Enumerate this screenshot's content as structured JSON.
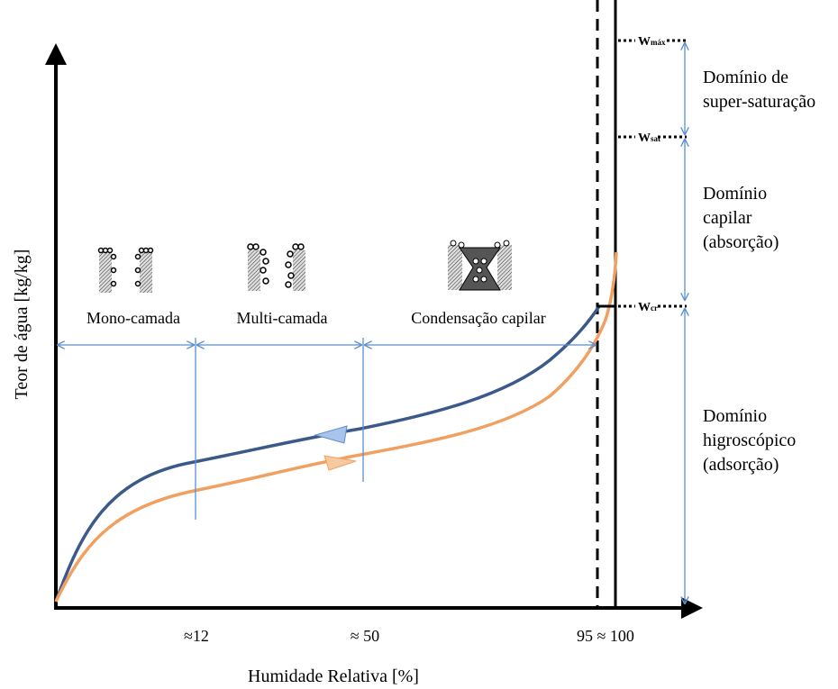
{
  "axes": {
    "y_label": "Teor de água [kg/kg]",
    "x_label": "Humidade Relativa [%]",
    "x_ticks": [
      "≈12",
      "≈ 50",
      "95 ≈ 100"
    ]
  },
  "regions": [
    "Mono-camada",
    "Multi-camada",
    "Condensação capilar"
  ],
  "levels": [
    {
      "symbol": "W",
      "subscript": "máx"
    },
    {
      "symbol": "W",
      "subscript": "sat"
    },
    {
      "symbol": "W",
      "subscript": "cr"
    }
  ],
  "domains": [
    [
      "Domínio de",
      "super-saturação"
    ],
    [
      "Domínio",
      "capilar",
      "(absorção)"
    ],
    [
      "Domínio",
      "higroscópico",
      "(adsorção)"
    ]
  ]
}
